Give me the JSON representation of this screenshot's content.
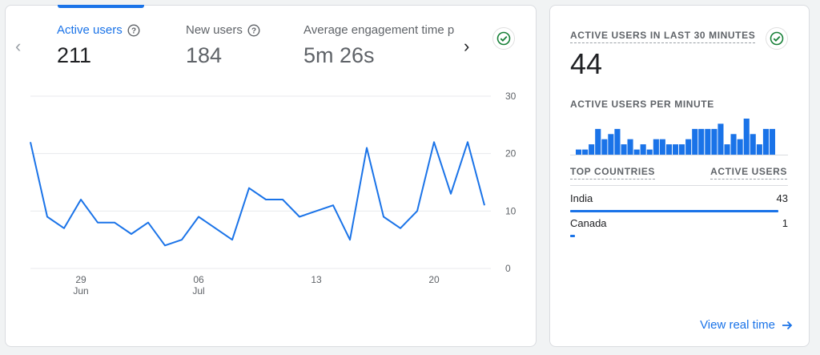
{
  "metrics": [
    {
      "label": "Active users",
      "value": "211",
      "selected": true
    },
    {
      "label": "New users",
      "value": "184",
      "selected": false
    },
    {
      "label": "Average engagement time p",
      "value": "5m 26s",
      "selected": false
    }
  ],
  "chart_data": {
    "type": "line",
    "x_tick_labels": [
      {
        "day": "29",
        "month": "Jun"
      },
      {
        "day": "06",
        "month": "Jul"
      },
      {
        "day": "13",
        "month": ""
      },
      {
        "day": "20",
        "month": ""
      }
    ],
    "y_ticks": [
      "30",
      "20",
      "10",
      "0"
    ],
    "ylim": [
      0,
      30
    ],
    "series": [
      {
        "values": [
          22,
          9,
          7,
          12,
          8,
          8,
          6,
          8,
          4,
          5,
          9,
          7,
          5,
          14,
          12,
          12,
          9,
          10,
          11,
          5,
          21,
          9,
          7,
          10,
          22,
          13,
          22,
          11
        ]
      }
    ],
    "color": "#1a73e8"
  },
  "realtime": {
    "title": "ACTIVE USERS IN LAST 30 MINUTES",
    "count": "44",
    "per_minute_label": "ACTIVE USERS PER MINUTE",
    "per_minute_values": [
      1,
      1,
      2,
      5,
      3,
      4,
      5,
      2,
      3,
      1,
      2,
      1,
      3,
      3,
      2,
      2,
      2,
      3,
      5,
      5,
      5,
      5,
      6,
      2,
      4,
      3,
      7,
      4,
      2,
      5,
      5
    ],
    "countries_header": "TOP COUNTRIES",
    "users_header": "ACTIVE USERS",
    "countries": [
      {
        "name": "India",
        "value": "43",
        "share": 0.977
      },
      {
        "name": "Canada",
        "value": "1",
        "share": 0.023
      }
    ],
    "view_link": "View real time"
  },
  "icons": {
    "help": "help-circle-icon",
    "check": "check-circle-icon",
    "prev": "chevron-left-icon",
    "next": "chevron-right-icon",
    "arrow": "arrow-right-icon"
  },
  "colors": {
    "accent": "#1a73e8",
    "check": "#188038"
  }
}
